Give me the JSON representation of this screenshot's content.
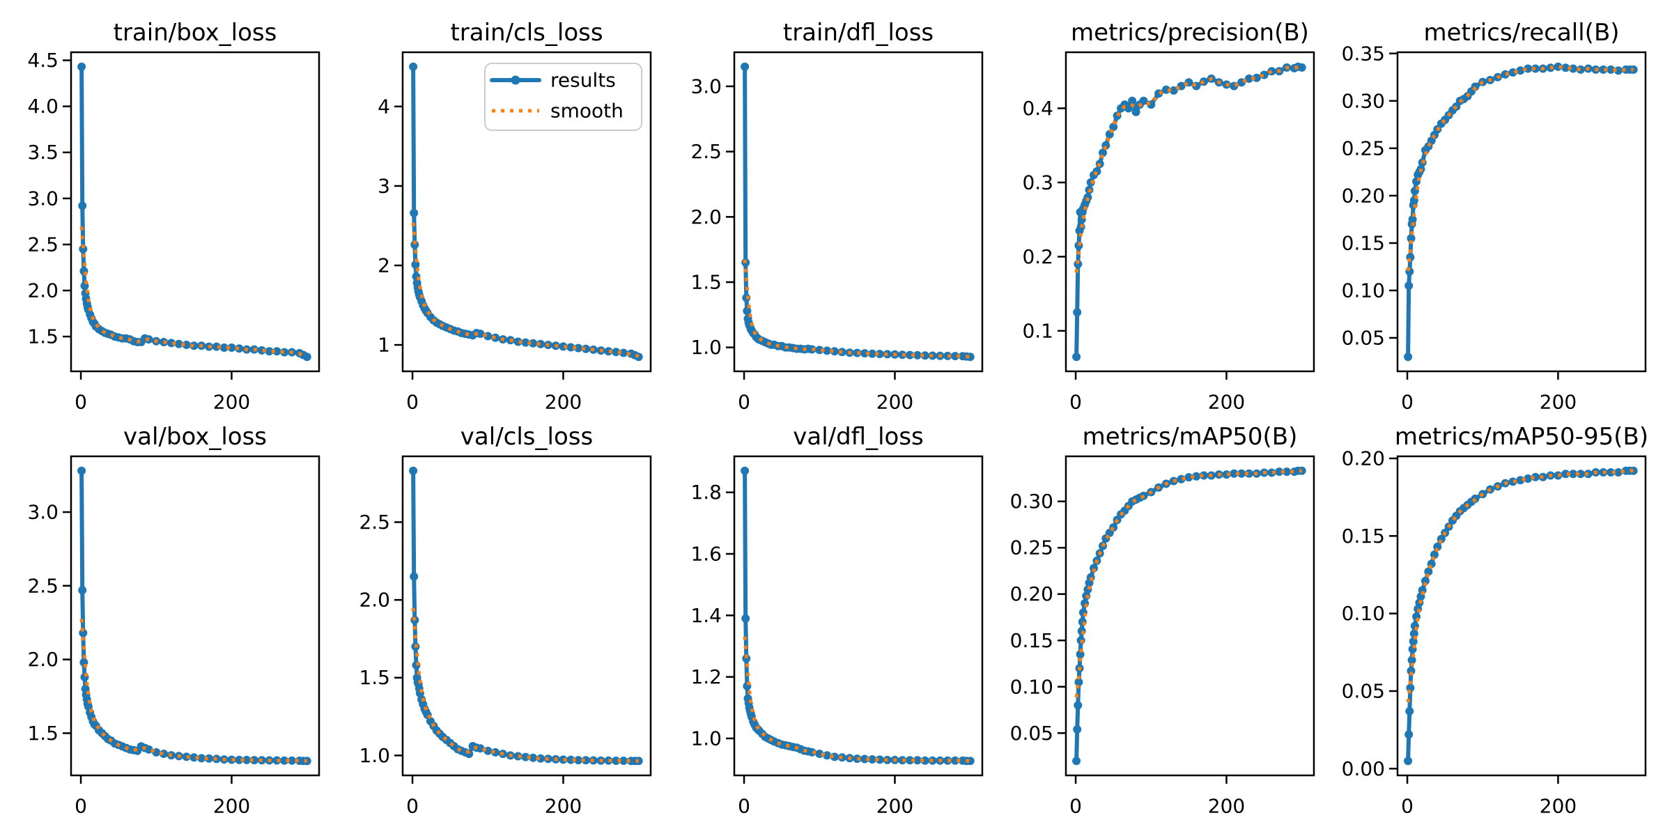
{
  "figure": {
    "background": "#ffffff",
    "description": "Training results figure: 2x5 grid of loss and metric curves vs epoch"
  },
  "chart_data": {
    "type": "line",
    "grid": "off",
    "legend": {
      "position": "upper right of subplot train/cls_loss",
      "entries": [
        {
          "label": "results",
          "color": "#1f77b4",
          "style": "solid line with circle markers"
        },
        {
          "label": "smooth",
          "color": "#ff7f0e",
          "style": "dotted line"
        }
      ]
    },
    "colors": {
      "results_line": "#1f77b4",
      "smooth_line": "#ff7f0e",
      "axes": "#000000",
      "legend_border": "#cccccc",
      "text": "#000000",
      "background": "#ffffff"
    },
    "xlabel": "",
    "ylabel": "",
    "xtick_values": [
      0,
      200
    ],
    "xtick_labels": [
      "0",
      "200"
    ],
    "xlim": [
      -13,
      316
    ],
    "smoothing": {
      "method": "gaussian",
      "sigma_epochs": 4
    },
    "epochs": [
      1,
      2,
      3,
      4,
      5,
      6,
      7,
      8,
      9,
      10,
      12,
      14,
      16,
      18,
      20,
      24,
      28,
      32,
      36,
      40,
      45,
      50,
      55,
      60,
      65,
      70,
      75,
      80,
      85,
      90,
      100,
      110,
      120,
      130,
      140,
      150,
      160,
      170,
      180,
      190,
      200,
      210,
      220,
      230,
      240,
      250,
      260,
      270,
      280,
      290,
      295,
      300
    ],
    "subplots": [
      {
        "title": "train/box_loss",
        "ytick_values": [
          4.5,
          4.0,
          3.5,
          3.0,
          2.5,
          2.0,
          1.5
        ],
        "ytick_labels": [
          "4.5",
          "4.0",
          "3.5",
          "3.0",
          "2.5",
          "2.0",
          "1.5"
        ],
        "values": [
          4.43,
          2.92,
          2.45,
          2.21,
          2.05,
          1.97,
          1.91,
          1.86,
          1.82,
          1.79,
          1.74,
          1.7,
          1.66,
          1.64,
          1.61,
          1.58,
          1.56,
          1.54,
          1.53,
          1.52,
          1.5,
          1.49,
          1.48,
          1.48,
          1.47,
          1.45,
          1.44,
          1.44,
          1.48,
          1.47,
          1.45,
          1.44,
          1.43,
          1.42,
          1.41,
          1.4,
          1.4,
          1.39,
          1.39,
          1.38,
          1.38,
          1.37,
          1.36,
          1.36,
          1.35,
          1.34,
          1.34,
          1.33,
          1.33,
          1.32,
          1.3,
          1.28
        ]
      },
      {
        "title": "train/cls_loss",
        "ytick_values": [
          4,
          3,
          2,
          1
        ],
        "ytick_labels": [
          "4",
          "3",
          "2",
          "1"
        ],
        "values": [
          4.5,
          2.66,
          2.26,
          2.01,
          1.86,
          1.78,
          1.72,
          1.67,
          1.63,
          1.6,
          1.55,
          1.5,
          1.46,
          1.43,
          1.4,
          1.35,
          1.31,
          1.28,
          1.26,
          1.24,
          1.22,
          1.2,
          1.18,
          1.17,
          1.15,
          1.14,
          1.13,
          1.12,
          1.15,
          1.14,
          1.11,
          1.09,
          1.07,
          1.06,
          1.04,
          1.03,
          1.02,
          1.01,
          1.0,
          0.99,
          0.98,
          0.97,
          0.96,
          0.95,
          0.94,
          0.93,
          0.92,
          0.91,
          0.9,
          0.89,
          0.87,
          0.85
        ]
      },
      {
        "title": "train/dfl_loss",
        "ytick_values": [
          3.0,
          2.5,
          2.0,
          1.5,
          1.0
        ],
        "ytick_labels": [
          "3.0",
          "2.5",
          "2.0",
          "1.5",
          "1.0"
        ],
        "values": [
          3.15,
          1.65,
          1.38,
          1.28,
          1.22,
          1.19,
          1.17,
          1.16,
          1.14,
          1.13,
          1.11,
          1.1,
          1.08,
          1.07,
          1.06,
          1.05,
          1.04,
          1.03,
          1.02,
          1.02,
          1.01,
          1.01,
          1.0,
          1.0,
          0.995,
          0.99,
          0.99,
          0.985,
          0.99,
          0.985,
          0.98,
          0.975,
          0.97,
          0.965,
          0.96,
          0.958,
          0.955,
          0.952,
          0.95,
          0.948,
          0.946,
          0.944,
          0.942,
          0.94,
          0.938,
          0.937,
          0.936,
          0.935,
          0.934,
          0.933,
          0.93,
          0.928
        ]
      },
      {
        "title": "metrics/precision(B)",
        "ytick_values": [
          0.4,
          0.3,
          0.2,
          0.1
        ],
        "ytick_labels": [
          "0.4",
          "0.3",
          "0.2",
          "0.1"
        ],
        "values": [
          0.065,
          0.125,
          0.19,
          0.215,
          0.235,
          0.26,
          0.24,
          0.25,
          0.26,
          0.265,
          0.27,
          0.275,
          0.28,
          0.29,
          0.3,
          0.31,
          0.315,
          0.325,
          0.34,
          0.35,
          0.365,
          0.375,
          0.39,
          0.4,
          0.405,
          0.4,
          0.41,
          0.395,
          0.405,
          0.41,
          0.405,
          0.42,
          0.425,
          0.424,
          0.43,
          0.435,
          0.43,
          0.436,
          0.44,
          0.435,
          0.432,
          0.43,
          0.435,
          0.44,
          0.441,
          0.445,
          0.45,
          0.45,
          0.455,
          0.454,
          0.456,
          0.455
        ]
      },
      {
        "title": "metrics/recall(B)",
        "ytick_values": [
          0.35,
          0.3,
          0.25,
          0.2,
          0.15,
          0.1,
          0.05
        ],
        "ytick_labels": [
          "0.35",
          "0.30",
          "0.25",
          "0.20",
          "0.15",
          "0.10",
          "0.05"
        ],
        "values": [
          0.03,
          0.105,
          0.12,
          0.135,
          0.155,
          0.17,
          0.175,
          0.19,
          0.195,
          0.205,
          0.215,
          0.222,
          0.225,
          0.228,
          0.235,
          0.248,
          0.252,
          0.258,
          0.264,
          0.27,
          0.276,
          0.28,
          0.285,
          0.29,
          0.294,
          0.3,
          0.302,
          0.305,
          0.31,
          0.315,
          0.32,
          0.322,
          0.325,
          0.328,
          0.33,
          0.332,
          0.334,
          0.334,
          0.334,
          0.335,
          0.336,
          0.335,
          0.334,
          0.333,
          0.334,
          0.333,
          0.333,
          0.333,
          0.332,
          0.333,
          0.333,
          0.333
        ]
      },
      {
        "title": "val/box_loss",
        "ytick_values": [
          3.0,
          2.5,
          2.0,
          1.5
        ],
        "ytick_labels": [
          "3.0",
          "2.5",
          "2.0",
          "1.5"
        ],
        "values": [
          3.28,
          2.47,
          2.18,
          1.98,
          1.88,
          1.8,
          1.76,
          1.73,
          1.7,
          1.68,
          1.64,
          1.61,
          1.58,
          1.56,
          1.55,
          1.52,
          1.5,
          1.48,
          1.46,
          1.45,
          1.43,
          1.42,
          1.41,
          1.4,
          1.39,
          1.385,
          1.38,
          1.41,
          1.4,
          1.39,
          1.37,
          1.36,
          1.35,
          1.345,
          1.34,
          1.335,
          1.33,
          1.328,
          1.325,
          1.322,
          1.32,
          1.319,
          1.318,
          1.317,
          1.316,
          1.315,
          1.315,
          1.314,
          1.314,
          1.313,
          1.312,
          1.312
        ]
      },
      {
        "title": "val/cls_loss",
        "ytick_values": [
          2.5,
          2.0,
          1.5,
          1.0
        ],
        "ytick_labels": [
          "2.5",
          "2.0",
          "1.5",
          "1.0"
        ],
        "values": [
          2.83,
          2.15,
          1.87,
          1.7,
          1.58,
          1.5,
          1.47,
          1.46,
          1.43,
          1.4,
          1.36,
          1.33,
          1.3,
          1.28,
          1.26,
          1.22,
          1.19,
          1.16,
          1.14,
          1.12,
          1.1,
          1.08,
          1.06,
          1.04,
          1.03,
          1.02,
          1.01,
          1.06,
          1.05,
          1.045,
          1.03,
          1.02,
          1.01,
          1.0,
          0.995,
          0.99,
          0.985,
          0.98,
          0.978,
          0.975,
          0.973,
          0.972,
          0.97,
          0.969,
          0.968,
          0.967,
          0.967,
          0.966,
          0.966,
          0.965,
          0.965,
          0.965
        ]
      },
      {
        "title": "val/dfl_loss",
        "ytick_values": [
          1.8,
          1.6,
          1.4,
          1.2,
          1.0
        ],
        "ytick_labels": [
          "1.8",
          "1.6",
          "1.4",
          "1.2",
          "1.0"
        ],
        "values": [
          1.87,
          1.39,
          1.26,
          1.17,
          1.13,
          1.115,
          1.1,
          1.09,
          1.08,
          1.07,
          1.055,
          1.045,
          1.035,
          1.03,
          1.025,
          1.015,
          1.005,
          1.0,
          0.995,
          0.99,
          0.985,
          0.98,
          0.978,
          0.975,
          0.972,
          0.97,
          0.965,
          0.96,
          0.958,
          0.955,
          0.95,
          0.945,
          0.94,
          0.938,
          0.936,
          0.934,
          0.933,
          0.932,
          0.931,
          0.93,
          0.93,
          0.929,
          0.929,
          0.929,
          0.928,
          0.928,
          0.928,
          0.928,
          0.928,
          0.928,
          0.927,
          0.927
        ]
      },
      {
        "title": "metrics/mAP50(B)",
        "ytick_values": [
          0.3,
          0.25,
          0.2,
          0.15,
          0.1,
          0.05
        ],
        "ytick_labels": [
          "0.30",
          "0.25",
          "0.20",
          "0.15",
          "0.10",
          "0.05"
        ],
        "values": [
          0.02,
          0.054,
          0.08,
          0.105,
          0.12,
          0.135,
          0.15,
          0.16,
          0.17,
          0.18,
          0.19,
          0.198,
          0.205,
          0.212,
          0.218,
          0.228,
          0.236,
          0.244,
          0.252,
          0.26,
          0.266,
          0.272,
          0.28,
          0.286,
          0.29,
          0.295,
          0.3,
          0.302,
          0.304,
          0.306,
          0.31,
          0.315,
          0.319,
          0.322,
          0.324,
          0.326,
          0.327,
          0.328,
          0.328,
          0.329,
          0.329,
          0.33,
          0.33,
          0.33,
          0.33,
          0.331,
          0.331,
          0.332,
          0.332,
          0.332,
          0.333,
          0.333
        ]
      },
      {
        "title": "metrics/mAP50-95(B)",
        "ytick_values": [
          0.2,
          0.15,
          0.1,
          0.05,
          0.0
        ],
        "ytick_labels": [
          "0.20",
          "0.15",
          "0.10",
          "0.05",
          "0.00"
        ],
        "values": [
          0.005,
          0.022,
          0.037,
          0.052,
          0.063,
          0.07,
          0.077,
          0.082,
          0.087,
          0.092,
          0.098,
          0.103,
          0.107,
          0.111,
          0.115,
          0.121,
          0.127,
          0.132,
          0.138,
          0.143,
          0.148,
          0.152,
          0.156,
          0.16,
          0.163,
          0.166,
          0.168,
          0.17,
          0.172,
          0.174,
          0.177,
          0.18,
          0.182,
          0.184,
          0.185,
          0.186,
          0.187,
          0.188,
          0.188,
          0.189,
          0.189,
          0.19,
          0.19,
          0.19,
          0.19,
          0.191,
          0.191,
          0.191,
          0.191,
          0.192,
          0.192,
          0.192
        ]
      }
    ]
  }
}
